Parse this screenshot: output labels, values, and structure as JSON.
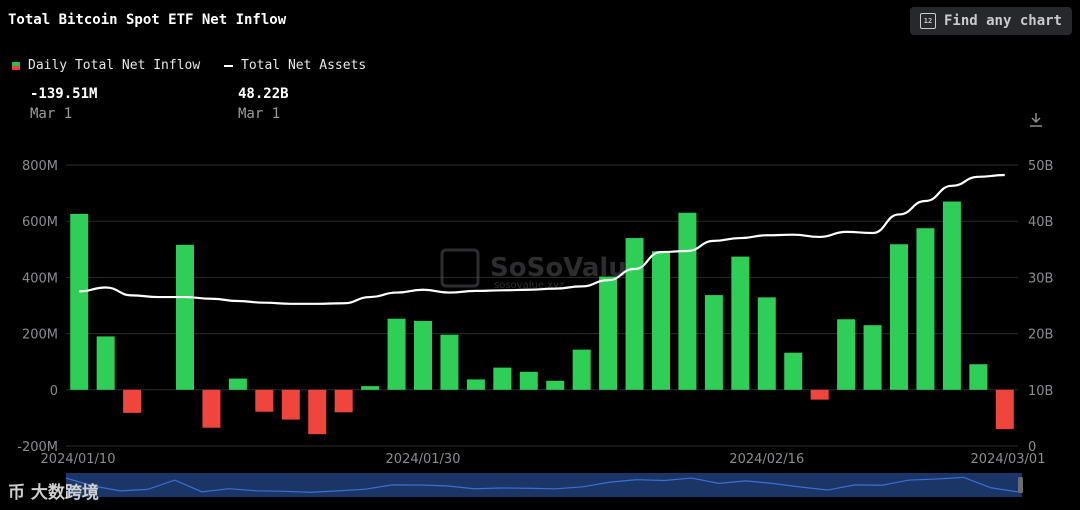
{
  "header": {
    "title": "Total Bitcoin Spot ETF Net Inflow",
    "find_label": "Find any chart",
    "calendar_icon_text": "12"
  },
  "legend": [
    {
      "name": "Daily Total Net Inflow",
      "value": "-139.51M",
      "date": "Mar 1"
    },
    {
      "name": "Total Net Assets",
      "value": "48.22B",
      "date": "Mar 1"
    }
  ],
  "watermark": {
    "brand": "SoSoValue",
    "sub": "sosovalue.xyz"
  },
  "footer_logo": "币 大数跨境",
  "colors": {
    "positive": "#2fcf57",
    "negative": "#f0453d",
    "line": "#ffffff",
    "navigator": "#1a3566",
    "navigator_line": "#3b6fd4"
  },
  "chart_data": {
    "type": "bar",
    "y_left": {
      "ticks": [
        "800M",
        "600M",
        "400M",
        "200M",
        "0",
        "-200M"
      ],
      "range": [
        -200,
        800
      ],
      "unit": "M"
    },
    "y_right": {
      "ticks": [
        "50B",
        "40B",
        "30B",
        "20B",
        "10B",
        "0"
      ],
      "range": [
        0,
        50
      ],
      "unit": "B"
    },
    "x_ticks": [
      {
        "label": "2024/01/10",
        "index": 0
      },
      {
        "label": "2024/01/30",
        "index": 13
      },
      {
        "label": "2024/02/16",
        "index": 26
      },
      {
        "label": "2024/03/01",
        "index": 35
      }
    ],
    "series": [
      {
        "name": "Daily Total Net Inflow",
        "kind": "bar",
        "values": [
          626,
          190,
          -82,
          null,
          516,
          -135,
          40,
          -78,
          -106,
          -158,
          -80,
          13,
          253,
          245,
          196,
          37,
          79,
          64,
          32,
          143,
          403,
          540,
          493,
          630,
          337,
          474,
          329,
          132,
          -35,
          251,
          230,
          518,
          575,
          670,
          91,
          -140
        ]
      },
      {
        "name": "Total Net Assets",
        "kind": "line",
        "values": [
          27.5,
          28.2,
          26.8,
          26.5,
          26.5,
          26.2,
          25.8,
          25.5,
          25.3,
          25.3,
          25.4,
          26.5,
          27.3,
          27.8,
          27.3,
          27.6,
          27.7,
          27.8,
          28.0,
          28.4,
          29.5,
          31.5,
          34.5,
          34.7,
          36.5,
          37.0,
          37.5,
          37.6,
          37.2,
          38.1,
          37.9,
          41.2,
          43.6,
          46.3,
          47.9,
          48.22
        ]
      }
    ]
  }
}
